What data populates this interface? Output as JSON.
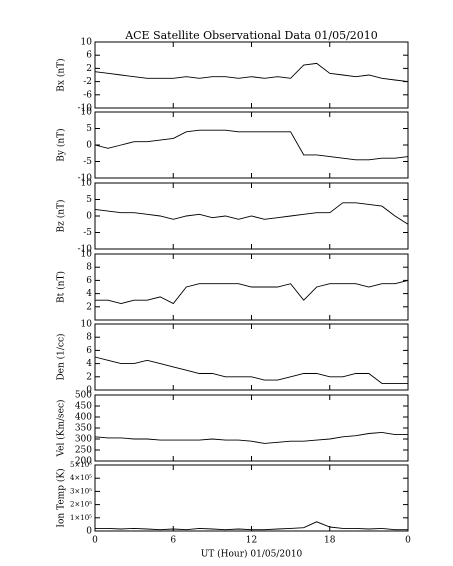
{
  "chart_data": [
    {
      "type": "line",
      "title": "ACE Satellite Observational Data  01/05/2010",
      "ylabel": "Bx (nT)",
      "ylim": [
        -10,
        10
      ],
      "yticks": [
        10,
        6,
        2,
        -2,
        -6,
        -10
      ],
      "xlim": [
        0,
        24
      ],
      "x": [
        0,
        1,
        2,
        3,
        4,
        5,
        6,
        7,
        8,
        9,
        10,
        11,
        12,
        13,
        14,
        15,
        16,
        17,
        18,
        19,
        20,
        21,
        22,
        23,
        24
      ],
      "series": [
        {
          "color": "#000000",
          "values": [
            1,
            0.5,
            0,
            -0.5,
            -1,
            -1,
            -1,
            -0.5,
            -1,
            -0.5,
            -0.5,
            -1,
            -0.5,
            -1,
            -0.5,
            -1,
            3,
            3.5,
            0.5,
            0,
            -0.5,
            0,
            -1,
            -1.5,
            -2
          ]
        }
      ]
    },
    {
      "type": "line",
      "ylabel": "By (nT)",
      "ylim": [
        -10,
        10
      ],
      "yticks": [
        10,
        5,
        0,
        -5,
        -10
      ],
      "xlim": [
        0,
        24
      ],
      "x": [
        0,
        1,
        2,
        3,
        4,
        5,
        6,
        7,
        8,
        9,
        10,
        11,
        12,
        13,
        14,
        15,
        16,
        17,
        18,
        19,
        20,
        21,
        22,
        23,
        24
      ],
      "series": [
        {
          "color": "#000000",
          "values": [
            0,
            -1,
            0,
            1,
            1,
            1.5,
            2,
            4,
            4.5,
            4.5,
            4.5,
            4,
            4,
            4,
            4,
            4,
            -3,
            -3,
            -3.5,
            -4,
            -4.5,
            -4.5,
            -4,
            -4,
            -3.5
          ]
        }
      ]
    },
    {
      "type": "line",
      "ylabel": "Bz (nT)",
      "ylim": [
        -10,
        10
      ],
      "yticks": [
        10,
        5,
        0,
        -5,
        -10
      ],
      "xlim": [
        0,
        24
      ],
      "x": [
        0,
        1,
        2,
        3,
        4,
        5,
        6,
        7,
        8,
        9,
        10,
        11,
        12,
        13,
        14,
        15,
        16,
        17,
        18,
        19,
        20,
        21,
        22,
        23,
        24
      ],
      "series": [
        {
          "color": "#000000",
          "values": [
            2,
            1.5,
            1,
            1,
            0.5,
            0,
            -1,
            0,
            0.5,
            -0.5,
            0,
            -1,
            0,
            -1,
            -0.5,
            0,
            0.5,
            1,
            1,
            4,
            4,
            3.5,
            3,
            0,
            -2.5
          ]
        }
      ]
    },
    {
      "type": "line",
      "ylabel": "Bt (nT)",
      "ylim": [
        0,
        10
      ],
      "yticks": [
        10,
        8,
        6,
        4,
        2
      ],
      "xlim": [
        0,
        24
      ],
      "x": [
        0,
        1,
        2,
        3,
        4,
        5,
        6,
        7,
        8,
        9,
        10,
        11,
        12,
        13,
        14,
        15,
        16,
        17,
        18,
        19,
        20,
        21,
        22,
        23,
        24
      ],
      "series": [
        {
          "color": "#000000",
          "values": [
            3,
            3,
            2.5,
            3,
            3,
            3.5,
            2.5,
            5,
            5.5,
            5.5,
            5.5,
            5.5,
            5,
            5,
            5,
            5.5,
            3,
            5,
            5.5,
            5.5,
            5.5,
            5,
            5.5,
            5.5,
            6
          ]
        }
      ]
    },
    {
      "type": "line",
      "ylabel": "Den (1/cc)",
      "ylim": [
        0,
        10
      ],
      "yticks": [
        10,
        8,
        6,
        4,
        2,
        0
      ],
      "xlim": [
        0,
        24
      ],
      "x": [
        0,
        1,
        2,
        3,
        4,
        5,
        6,
        7,
        8,
        9,
        10,
        11,
        12,
        13,
        14,
        15,
        16,
        17,
        18,
        19,
        20,
        21,
        22,
        23,
        24
      ],
      "series": [
        {
          "color": "#000000",
          "values": [
            5,
            4.5,
            4,
            4,
            4.5,
            4,
            3.5,
            3,
            2.5,
            2.5,
            2,
            2,
            2,
            1.5,
            1.5,
            2,
            2.5,
            2.5,
            2,
            2,
            2.5,
            2.5,
            1,
            1,
            1
          ]
        }
      ]
    },
    {
      "type": "line",
      "ylabel": "Vel (Km/sec)",
      "ylim": [
        200,
        500
      ],
      "yticks": [
        500,
        450,
        400,
        350,
        300,
        250,
        200
      ],
      "xlim": [
        0,
        24
      ],
      "x": [
        0,
        1,
        2,
        3,
        4,
        5,
        6,
        7,
        8,
        9,
        10,
        11,
        12,
        13,
        14,
        15,
        16,
        17,
        18,
        19,
        20,
        21,
        22,
        23,
        24
      ],
      "series": [
        {
          "color": "#000000",
          "values": [
            310,
            305,
            305,
            300,
            300,
            295,
            295,
            295,
            295,
            300,
            295,
            295,
            290,
            280,
            285,
            290,
            290,
            295,
            300,
            310,
            315,
            325,
            330,
            320,
            320
          ]
        }
      ]
    },
    {
      "type": "line",
      "ylabel": "Ion Temp (K)",
      "ylim": [
        0,
        500000
      ],
      "yticks": [
        {
          "value": 500000,
          "label": "5×10⁵"
        },
        {
          "value": 400000,
          "label": "4×10⁵"
        },
        {
          "value": 300000,
          "label": "3×10⁵"
        },
        {
          "value": 200000,
          "label": "2×10⁵"
        },
        {
          "value": 100000,
          "label": "1×10⁵"
        },
        0
      ],
      "xlim": [
        0,
        24
      ],
      "xticks": [
        0,
        6,
        12,
        18,
        {
          "value": 24,
          "label": "0"
        }
      ],
      "xlabel": "UT (Hour)  01/05/2010",
      "x": [
        0,
        1,
        2,
        3,
        4,
        5,
        6,
        7,
        8,
        9,
        10,
        11,
        12,
        13,
        14,
        15,
        16,
        17,
        18,
        19,
        20,
        21,
        22,
        23,
        24
      ],
      "series": [
        {
          "color": "#000000",
          "values": [
            20000,
            20000,
            15000,
            20000,
            15000,
            10000,
            15000,
            10000,
            20000,
            15000,
            10000,
            15000,
            10000,
            10000,
            15000,
            20000,
            25000,
            70000,
            30000,
            20000,
            20000,
            15000,
            20000,
            10000,
            10000
          ]
        }
      ]
    }
  ]
}
